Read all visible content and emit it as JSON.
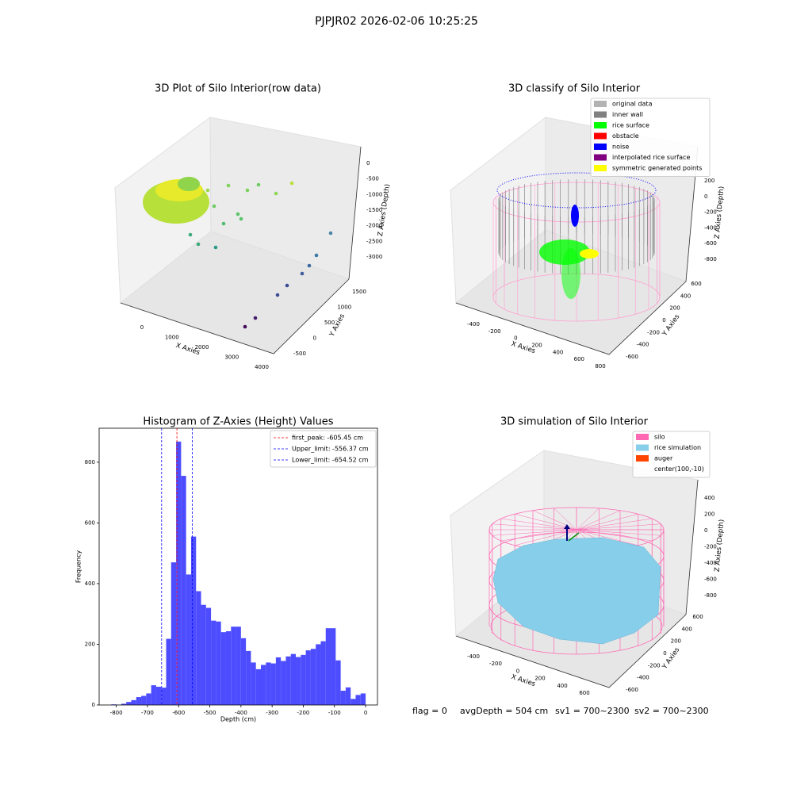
{
  "title": "PJPJR02 2026-02-06 10:25:25",
  "chart_data": [
    {
      "type": "scatter3d",
      "title": "3D Plot of Silo Interior(row data)",
      "xlabel": "X Axies",
      "ylabel": "Y Axies",
      "zlabel": "Z Axies (Depth)",
      "xticks": [
        0,
        1000,
        2000,
        3000,
        4000
      ],
      "yticks": [
        -500,
        0,
        500,
        1000,
        1500
      ],
      "zticks": [
        0,
        -500,
        -1000,
        -1500,
        -2000,
        -2500,
        -3000
      ]
    },
    {
      "type": "scatter3d",
      "title": "3D classify of Silo Interior",
      "xlabel": "X Axies",
      "ylabel": "Y Axies",
      "zlabel": "Z Axies (Depth)",
      "xticks": [
        -400,
        -200,
        0,
        200,
        400,
        600,
        800
      ],
      "yticks": [
        -600,
        -400,
        -200,
        0,
        200,
        400,
        600
      ],
      "zticks": [
        200,
        0,
        -200,
        -400,
        -600,
        -800
      ],
      "legend": "upper right",
      "series": [
        {
          "name": "original data",
          "color": "#b3b3b3"
        },
        {
          "name": "inner wall",
          "color": "#808080"
        },
        {
          "name": "rice surface",
          "color": "#00ff00"
        },
        {
          "name": "obstacle",
          "color": "#ff0000"
        },
        {
          "name": "noise",
          "color": "#0000ff"
        },
        {
          "name": "interpolated rice surface",
          "color": "#800080"
        },
        {
          "name": "symmetric generated points",
          "color": "#ffff00"
        }
      ]
    },
    {
      "type": "histogram",
      "title": "Histogram of Z-Axies (Height) Values",
      "xlabel": "Depth (cm)",
      "ylabel": "Frequency",
      "color": "#4d4dff",
      "bins": [
        -816,
        -800,
        -784,
        -768,
        -752,
        -736,
        -720,
        -704,
        -688,
        -672,
        -656,
        -640,
        -624,
        -608,
        -592,
        -576,
        -560,
        -544,
        -528,
        -512,
        -496,
        -480,
        -464,
        -448,
        -432,
        -416,
        -400,
        -384,
        -368,
        -352,
        -336,
        -320,
        -304,
        -288,
        -272,
        -256,
        -240,
        -224,
        -208,
        -192,
        -176,
        -160,
        -144,
        -128,
        -112,
        -96,
        -80,
        -64,
        -48,
        -32,
        -16,
        0
      ],
      "values": [
        2,
        1,
        4,
        10,
        16,
        26,
        30,
        38,
        65,
        60,
        57,
        218,
        470,
        868,
        755,
        430,
        555,
        375,
        330,
        320,
        278,
        275,
        240,
        243,
        258,
        258,
        220,
        178,
        140,
        118,
        132,
        140,
        137,
        157,
        145,
        160,
        168,
        158,
        165,
        180,
        185,
        200,
        210,
        253,
        253,
        147,
        47,
        58,
        20,
        33,
        38
      ],
      "xlim": [
        -855,
        38
      ],
      "ylim": [
        0,
        912
      ],
      "xticks": [
        -800,
        -700,
        -600,
        -500,
        -400,
        -300,
        -200,
        -100,
        0
      ],
      "yticks": [
        0,
        200,
        400,
        600,
        800
      ],
      "legend": "upper right",
      "vlines": [
        {
          "name": "first_peak: -605.45 cm",
          "value": -605.45,
          "color": "#ff0000"
        },
        {
          "name": "Upper_limit: -556.37 cm",
          "value": -556.37,
          "color": "#0000ff"
        },
        {
          "name": "Lower_limit: -654.52 cm",
          "value": -654.52,
          "color": "#0000ff"
        }
      ]
    },
    {
      "type": "scatter3d",
      "title": "3D simulation of Silo Interior",
      "xlabel": "X Axies",
      "ylabel": "Y Axies",
      "zlabel": "Z Axies (Depth)",
      "xticks": [
        -400,
        -200,
        0,
        200,
        400,
        600
      ],
      "yticks": [
        -600,
        -400,
        -200,
        0,
        200,
        400,
        600
      ],
      "zticks": [
        400,
        200,
        0,
        -200,
        -400,
        -600,
        -800
      ],
      "legend": "upper right",
      "series": [
        {
          "name": "silo",
          "color": "#ff69b4"
        },
        {
          "name": "rice simulation",
          "color": "#87ceeb"
        },
        {
          "name": "auger",
          "color": "#ff4500"
        },
        {
          "name": "center(100,-10)"
        }
      ]
    }
  ],
  "footer": [
    "flag = 0",
    "avgDepth = 504 cm",
    "sv1 = 700~2300",
    "sv2 = 700~2300"
  ]
}
